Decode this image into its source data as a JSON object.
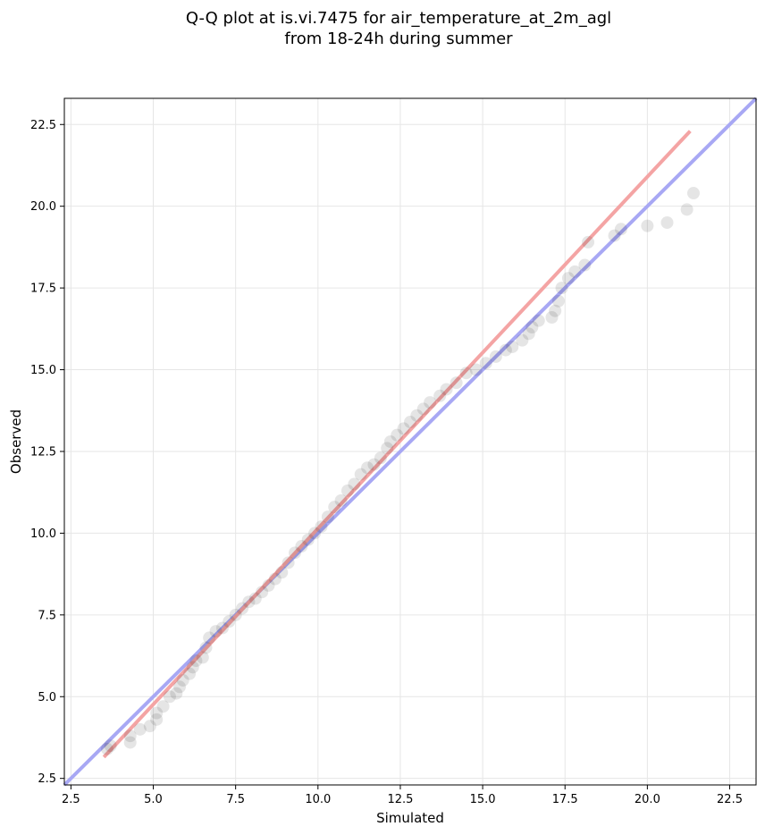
{
  "chart_data": {
    "type": "scatter",
    "title_line1": "Q-Q plot at is.vi.7475 for air_temperature_at_2m_agl",
    "title_line2": "from 18-24h during summer",
    "xlabel": "Simulated",
    "ylabel": "Observed",
    "xlim": [
      2.3,
      23.3
    ],
    "ylim": [
      2.3,
      23.3
    ],
    "xticks": [
      "2.5",
      "5.0",
      "7.5",
      "10.0",
      "12.5",
      "15.0",
      "17.5",
      "20.0",
      "22.5"
    ],
    "yticks": [
      "2.5",
      "5.0",
      "7.5",
      "10.0",
      "12.5",
      "15.0",
      "17.5",
      "20.0",
      "22.5"
    ],
    "grid": true,
    "point_color": "#000000",
    "points": [
      [
        3.6,
        3.4
      ],
      [
        3.7,
        3.5
      ],
      [
        4.3,
        3.6
      ],
      [
        4.3,
        3.8
      ],
      [
        4.6,
        4.0
      ],
      [
        4.9,
        4.1
      ],
      [
        5.1,
        4.3
      ],
      [
        5.1,
        4.5
      ],
      [
        5.3,
        4.7
      ],
      [
        5.5,
        5.0
      ],
      [
        5.7,
        5.1
      ],
      [
        5.8,
        5.3
      ],
      [
        5.9,
        5.5
      ],
      [
        6.1,
        5.7
      ],
      [
        6.2,
        5.9
      ],
      [
        6.3,
        6.1
      ],
      [
        6.5,
        6.2
      ],
      [
        6.6,
        6.5
      ],
      [
        6.7,
        6.8
      ],
      [
        6.9,
        7.0
      ],
      [
        7.1,
        7.1
      ],
      [
        7.3,
        7.3
      ],
      [
        7.5,
        7.5
      ],
      [
        7.7,
        7.7
      ],
      [
        7.9,
        7.9
      ],
      [
        8.1,
        8.0
      ],
      [
        8.3,
        8.2
      ],
      [
        8.5,
        8.4
      ],
      [
        8.7,
        8.6
      ],
      [
        8.9,
        8.8
      ],
      [
        9.1,
        9.1
      ],
      [
        9.3,
        9.4
      ],
      [
        9.5,
        9.6
      ],
      [
        9.7,
        9.8
      ],
      [
        9.9,
        10.0
      ],
      [
        10.1,
        10.2
      ],
      [
        10.3,
        10.5
      ],
      [
        10.5,
        10.8
      ],
      [
        10.7,
        11.0
      ],
      [
        10.9,
        11.3
      ],
      [
        11.1,
        11.5
      ],
      [
        11.3,
        11.8
      ],
      [
        11.5,
        12.0
      ],
      [
        11.7,
        12.1
      ],
      [
        11.9,
        12.3
      ],
      [
        12.1,
        12.6
      ],
      [
        12.2,
        12.8
      ],
      [
        12.4,
        13.0
      ],
      [
        12.6,
        13.2
      ],
      [
        12.8,
        13.4
      ],
      [
        13.0,
        13.6
      ],
      [
        13.2,
        13.8
      ],
      [
        13.4,
        14.0
      ],
      [
        13.7,
        14.2
      ],
      [
        13.9,
        14.4
      ],
      [
        14.2,
        14.6
      ],
      [
        14.5,
        14.9
      ],
      [
        14.8,
        15.0
      ],
      [
        15.1,
        15.2
      ],
      [
        15.4,
        15.4
      ],
      [
        15.7,
        15.6
      ],
      [
        15.9,
        15.7
      ],
      [
        16.2,
        15.9
      ],
      [
        16.4,
        16.1
      ],
      [
        16.5,
        16.3
      ],
      [
        16.7,
        16.5
      ],
      [
        17.1,
        16.6
      ],
      [
        17.2,
        16.8
      ],
      [
        17.3,
        17.1
      ],
      [
        17.4,
        17.5
      ],
      [
        17.6,
        17.8
      ],
      [
        17.8,
        18.0
      ],
      [
        18.1,
        18.2
      ],
      [
        18.2,
        18.9
      ],
      [
        19.0,
        19.1
      ],
      [
        19.2,
        19.3
      ],
      [
        20.0,
        19.4
      ],
      [
        20.6,
        19.5
      ],
      [
        21.2,
        19.9
      ],
      [
        21.4,
        20.4
      ]
    ],
    "fit_line": {
      "color": "#f4a4a4",
      "x": [
        3.5,
        21.3
      ],
      "y": [
        3.15,
        22.3
      ]
    },
    "reference_line": {
      "color": "#a8a8f4",
      "x": [
        2.3,
        23.3
      ],
      "y": [
        2.3,
        23.3
      ]
    }
  }
}
